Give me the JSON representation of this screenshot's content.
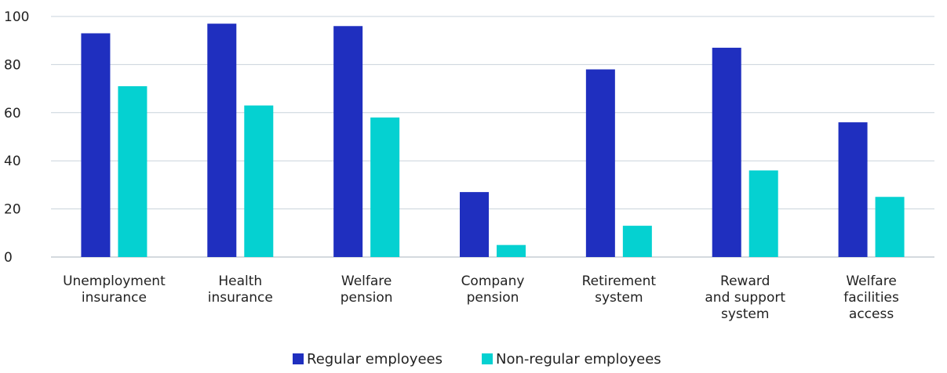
{
  "chart_data": {
    "type": "bar",
    "categories": [
      [
        "Unemployment",
        "insurance"
      ],
      [
        "Health",
        "insurance"
      ],
      [
        "Welfare",
        "pension"
      ],
      [
        "Company",
        "pension"
      ],
      [
        "Retirement",
        "system"
      ],
      [
        "Reward",
        "and support",
        "system"
      ],
      [
        "Welfare",
        "facilities",
        "access"
      ]
    ],
    "series": [
      {
        "name": "Regular employees",
        "color": "#1f2fbf",
        "values": [
          93,
          97,
          96,
          27,
          78,
          87,
          56
        ]
      },
      {
        "name": "Non-regular employees",
        "color": "#05d1d1",
        "values": [
          71,
          63,
          58,
          5,
          13,
          36,
          25
        ]
      }
    ],
    "yticks": [
      0,
      20,
      40,
      60,
      80,
      100
    ],
    "ylim": [
      0,
      100
    ],
    "title": "",
    "xlabel": "",
    "ylabel": "",
    "grid": true,
    "legend_position": "bottom-center"
  }
}
